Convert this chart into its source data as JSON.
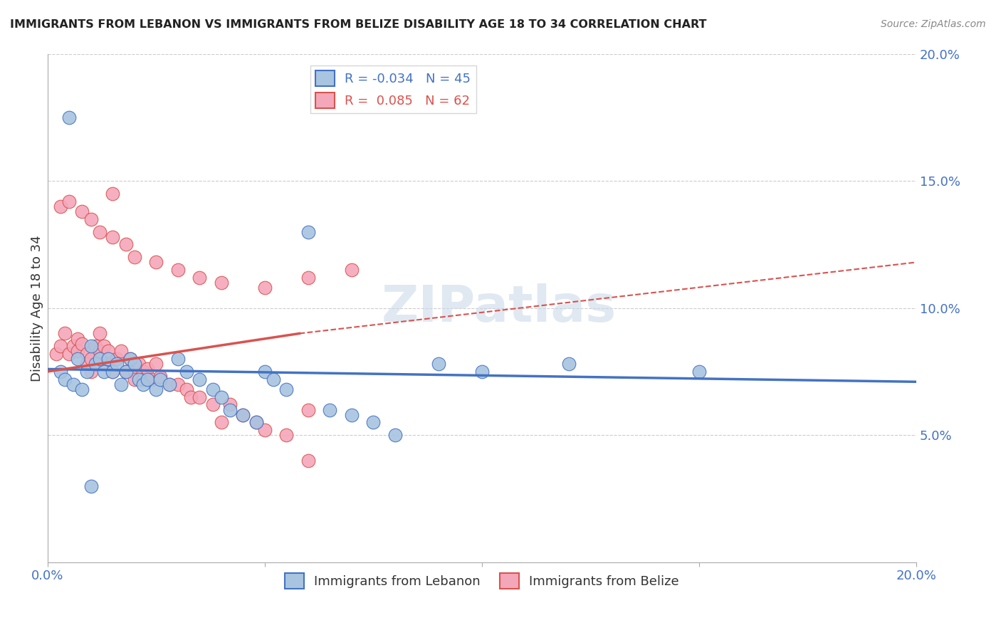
{
  "title": "IMMIGRANTS FROM LEBANON VS IMMIGRANTS FROM BELIZE DISABILITY AGE 18 TO 34 CORRELATION CHART",
  "source": "Source: ZipAtlas.com",
  "xlabel_label": "Immigrants from Lebanon",
  "ylabel_label": "Disability Age 18 to 34",
  "legend_label2": "Immigrants from Belize",
  "xlim": [
    0.0,
    0.2
  ],
  "ylim": [
    0.0,
    0.2
  ],
  "xticks": [
    0.0,
    0.05,
    0.1,
    0.15,
    0.2
  ],
  "yticks": [
    0.05,
    0.1,
    0.15,
    0.2
  ],
  "xtick_labels": [
    "0.0%",
    "",
    "",
    "",
    "20.0%"
  ],
  "ytick_labels": [
    "5.0%",
    "10.0%",
    "15.0%",
    "20.0%"
  ],
  "blue_R": "-0.034",
  "blue_N": "45",
  "pink_R": "0.085",
  "pink_N": "62",
  "blue_color": "#a8c4e0",
  "pink_color": "#f4a7b9",
  "blue_line_color": "#4472c4",
  "pink_line_color": "#d9534f",
  "watermark": "ZIPatlas",
  "blue_line_x0": 0.0,
  "blue_line_y0": 0.076,
  "blue_line_x1": 0.2,
  "blue_line_y1": 0.071,
  "pink_line_solid_x0": 0.0,
  "pink_line_solid_y0": 0.075,
  "pink_line_solid_x1": 0.058,
  "pink_line_solid_y1": 0.09,
  "pink_line_dash_x0": 0.058,
  "pink_line_dash_y0": 0.09,
  "pink_line_dash_x1": 0.2,
  "pink_line_dash_y1": 0.118,
  "blue_scatter_x": [
    0.005,
    0.007,
    0.009,
    0.01,
    0.011,
    0.012,
    0.013,
    0.014,
    0.015,
    0.016,
    0.017,
    0.018,
    0.019,
    0.02,
    0.021,
    0.022,
    0.023,
    0.025,
    0.026,
    0.028,
    0.03,
    0.032,
    0.035,
    0.038,
    0.04,
    0.042,
    0.045,
    0.048,
    0.05,
    0.052,
    0.055,
    0.06,
    0.065,
    0.07,
    0.075,
    0.08,
    0.09,
    0.1,
    0.12,
    0.15,
    0.003,
    0.004,
    0.006,
    0.008,
    0.01
  ],
  "blue_scatter_y": [
    0.175,
    0.08,
    0.075,
    0.085,
    0.078,
    0.08,
    0.075,
    0.08,
    0.075,
    0.078,
    0.07,
    0.075,
    0.08,
    0.078,
    0.072,
    0.07,
    0.072,
    0.068,
    0.072,
    0.07,
    0.08,
    0.075,
    0.072,
    0.068,
    0.065,
    0.06,
    0.058,
    0.055,
    0.075,
    0.072,
    0.068,
    0.13,
    0.06,
    0.058,
    0.055,
    0.05,
    0.078,
    0.075,
    0.078,
    0.075,
    0.075,
    0.072,
    0.07,
    0.068,
    0.03
  ],
  "pink_scatter_x": [
    0.002,
    0.003,
    0.004,
    0.005,
    0.006,
    0.007,
    0.007,
    0.008,
    0.009,
    0.009,
    0.01,
    0.01,
    0.011,
    0.012,
    0.012,
    0.013,
    0.013,
    0.014,
    0.015,
    0.015,
    0.016,
    0.017,
    0.018,
    0.019,
    0.02,
    0.02,
    0.021,
    0.022,
    0.022,
    0.023,
    0.024,
    0.025,
    0.026,
    0.028,
    0.03,
    0.032,
    0.033,
    0.035,
    0.038,
    0.04,
    0.042,
    0.045,
    0.048,
    0.05,
    0.055,
    0.06,
    0.003,
    0.005,
    0.008,
    0.01,
    0.012,
    0.015,
    0.018,
    0.02,
    0.025,
    0.03,
    0.035,
    0.04,
    0.05,
    0.06,
    0.07,
    0.06
  ],
  "pink_scatter_y": [
    0.082,
    0.085,
    0.09,
    0.082,
    0.085,
    0.088,
    0.083,
    0.086,
    0.082,
    0.078,
    0.08,
    0.075,
    0.085,
    0.09,
    0.083,
    0.085,
    0.078,
    0.083,
    0.145,
    0.075,
    0.08,
    0.083,
    0.075,
    0.08,
    0.075,
    0.072,
    0.078,
    0.075,
    0.072,
    0.076,
    0.072,
    0.078,
    0.073,
    0.07,
    0.07,
    0.068,
    0.065,
    0.065,
    0.062,
    0.055,
    0.062,
    0.058,
    0.055,
    0.052,
    0.05,
    0.06,
    0.14,
    0.142,
    0.138,
    0.135,
    0.13,
    0.128,
    0.125,
    0.12,
    0.118,
    0.115,
    0.112,
    0.11,
    0.108,
    0.112,
    0.115,
    0.04
  ]
}
